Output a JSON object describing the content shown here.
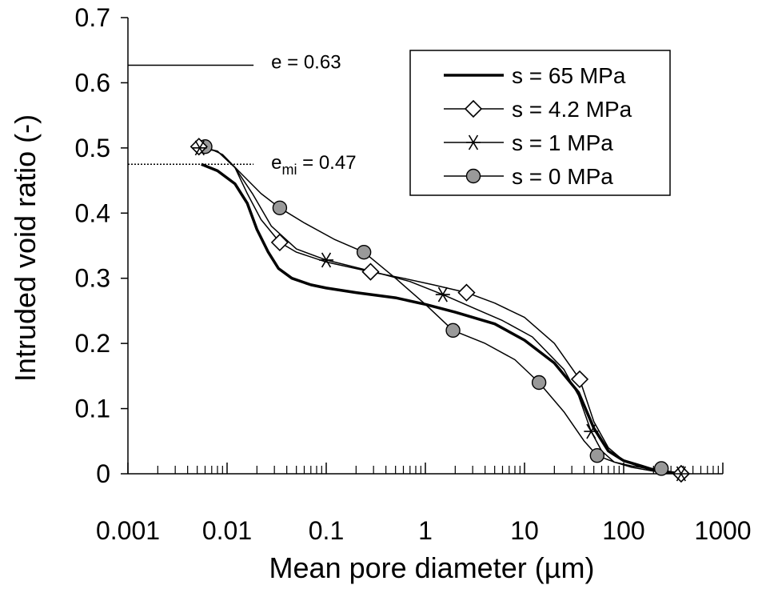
{
  "chart_data": {
    "type": "line",
    "xlabel": "Mean pore diameter (µm)",
    "ylabel": "Intruded void ratio (-)",
    "xscale": "log",
    "xlim": [
      0.001,
      1000
    ],
    "ylim": [
      0,
      0.7
    ],
    "x_tick_labels": [
      "0.001",
      "0.01",
      "0.1",
      "1",
      "10",
      "100",
      "1000"
    ],
    "y_tick_labels": [
      "0",
      "0.1",
      "0.2",
      "0.3",
      "0.4",
      "0.5",
      "0.6",
      "0.7"
    ],
    "grid": false,
    "legend_position": "top-right",
    "series": [
      {
        "name": "s = 65 MPa",
        "marker": "none",
        "line_width": 3.5,
        "x": [
          0.0055,
          0.008,
          0.012,
          0.016,
          0.02,
          0.026,
          0.033,
          0.045,
          0.07,
          0.1,
          0.2,
          0.5,
          1,
          2,
          5,
          10,
          20,
          35,
          50,
          70,
          100,
          150,
          200,
          300,
          380
        ],
        "y": [
          0.475,
          0.465,
          0.445,
          0.415,
          0.375,
          0.34,
          0.315,
          0.3,
          0.29,
          0.285,
          0.278,
          0.27,
          0.26,
          0.248,
          0.23,
          0.205,
          0.17,
          0.125,
          0.07,
          0.035,
          0.02,
          0.012,
          0.006,
          0.002,
          0
        ]
      },
      {
        "name": "s = 4.2 MPa",
        "marker": "diamond",
        "line_width": 1.5,
        "x": [
          0.0052,
          0.008,
          0.012,
          0.016,
          0.022,
          0.034,
          0.05,
          0.1,
          0.28,
          0.6,
          1.2,
          2.6,
          5,
          10,
          20,
          36,
          50,
          70,
          100,
          150,
          200,
          300,
          380
        ],
        "y": [
          0.502,
          0.495,
          0.47,
          0.43,
          0.39,
          0.355,
          0.34,
          0.325,
          0.31,
          0.3,
          0.29,
          0.278,
          0.262,
          0.24,
          0.2,
          0.145,
          0.08,
          0.04,
          0.02,
          0.01,
          0.005,
          0.002,
          0
        ]
      },
      {
        "name": "s = 1 MPa",
        "marker": "asterisk",
        "line_width": 1.5,
        "x": [
          0.0053,
          0.008,
          0.012,
          0.018,
          0.028,
          0.05,
          0.1,
          0.3,
          0.7,
          1.5,
          3,
          6,
          12,
          25,
          35,
          47,
          60,
          80,
          120,
          200,
          300,
          380
        ],
        "y": [
          0.5,
          0.495,
          0.47,
          0.43,
          0.38,
          0.345,
          0.328,
          0.31,
          0.295,
          0.275,
          0.255,
          0.235,
          0.21,
          0.16,
          0.12,
          0.065,
          0.035,
          0.018,
          0.01,
          0.004,
          0.001,
          0
        ]
      },
      {
        "name": "s = 0 MPa",
        "marker": "circle",
        "line_width": 1.5,
        "x": [
          0.006,
          0.009,
          0.014,
          0.022,
          0.034,
          0.06,
          0.12,
          0.24,
          0.5,
          1,
          1.9,
          4,
          8,
          14,
          25,
          40,
          54,
          80,
          120,
          180,
          240
        ],
        "y": [
          0.502,
          0.49,
          0.46,
          0.43,
          0.408,
          0.385,
          0.36,
          0.34,
          0.3,
          0.26,
          0.22,
          0.2,
          0.175,
          0.14,
          0.095,
          0.05,
          0.028,
          0.018,
          0.012,
          0.008,
          0.008
        ]
      }
    ],
    "markers_shown": {
      "s = 4.2 MPa": {
        "x": [
          0.0052,
          0.034,
          0.28,
          2.6,
          36,
          380
        ],
        "y": [
          0.502,
          0.355,
          0.31,
          0.278,
          0.145,
          0
        ]
      },
      "s = 1 MPa": {
        "x": [
          0.0053,
          0.1,
          1.5,
          47,
          380
        ],
        "y": [
          0.5,
          0.328,
          0.275,
          0.065,
          0
        ]
      },
      "s = 0 MPa": {
        "x": [
          0.006,
          0.034,
          0.24,
          1.9,
          14,
          54,
          240
        ],
        "y": [
          0.502,
          0.408,
          0.34,
          0.22,
          0.14,
          0.028,
          0.008
        ]
      }
    },
    "reference_lines": [
      {
        "label_main": "e = 0.63",
        "label_sub": "",
        "label_suffix": "",
        "y": 0.627,
        "x_from": 0.001,
        "x_to": 0.0185,
        "style": "solid"
      },
      {
        "label_main": "e",
        "label_sub": "mi",
        "label_suffix": " = 0.47",
        "y": 0.475,
        "x_from": 0.001,
        "x_to": 0.0185,
        "style": "dotted"
      }
    ]
  }
}
